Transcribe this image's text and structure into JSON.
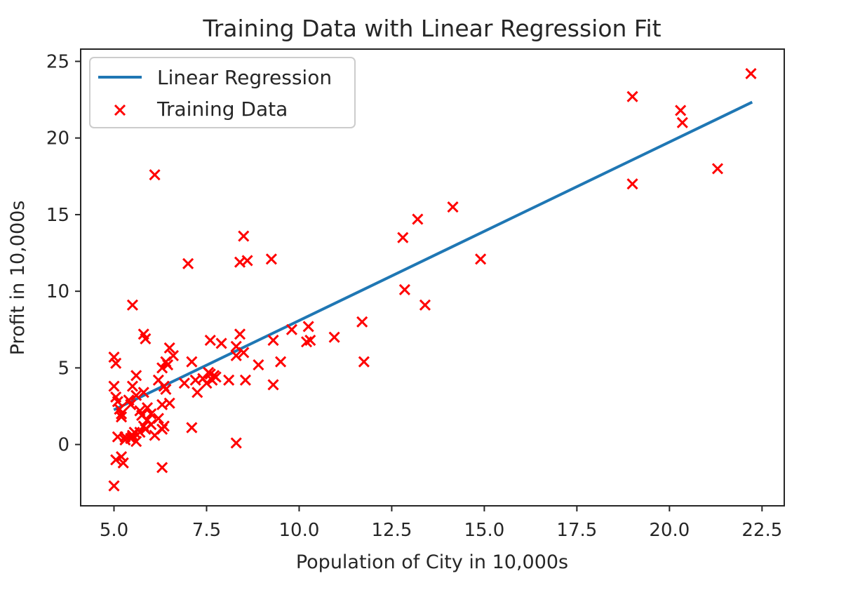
{
  "chart_data": {
    "type": "scatter",
    "title": "Training Data with Linear Regression Fit",
    "xlabel": "Population of City in 10,000s",
    "ylabel": "Profit in 10,000s",
    "xlim": [
      4.1,
      23.1
    ],
    "ylim": [
      -4.0,
      25.8
    ],
    "xticks": [
      5.0,
      7.5,
      10.0,
      12.5,
      15.0,
      17.5,
      20.0,
      22.5
    ],
    "xtick_labels": [
      "5.0",
      "7.5",
      "10.0",
      "12.5",
      "15.0",
      "17.5",
      "20.0",
      "22.5"
    ],
    "yticks": [
      0,
      5,
      10,
      15,
      20,
      25
    ],
    "ytick_labels": [
      "0",
      "5",
      "10",
      "15",
      "20",
      "25"
    ],
    "grid": false,
    "legend_position": "top-left",
    "colors": {
      "line": "#1f77b4",
      "points": "#ff0000",
      "axes": "#262626"
    },
    "series": [
      {
        "name": "Linear Regression",
        "kind": "line",
        "x": [
          5.03,
          22.2
        ],
        "y": [
          2.3,
          22.3
        ]
      },
      {
        "name": "Training Data",
        "kind": "scatter",
        "marker": "x",
        "x": [
          22.2,
          19.0,
          20.3,
          20.35,
          21.3,
          19.0,
          6.1,
          14.15,
          13.2,
          12.8,
          14.9,
          12.85,
          13.4,
          11.7,
          11.75,
          10.95,
          10.25,
          10.3,
          10.2,
          9.8,
          9.5,
          9.3,
          9.25,
          9.3,
          8.5,
          8.4,
          8.6,
          8.55,
          8.4,
          8.3,
          8.5,
          8.3,
          8.1,
          8.9,
          7.9,
          7.6,
          7.75,
          7.0,
          7.1,
          7.2,
          7.25,
          7.5,
          7.4,
          7.6,
          7.65,
          7.55,
          7.7,
          6.9,
          6.5,
          6.4,
          6.45,
          6.3,
          6.6,
          6.2,
          6.35,
          6.4,
          6.3,
          6.5,
          6.35,
          5.5,
          5.8,
          5.85,
          5.8,
          5.6,
          5.5,
          5.6,
          5.4,
          5.45,
          5.7,
          5.75,
          5.9,
          5.8,
          5.85,
          5.7,
          6.0,
          6.2,
          6.3,
          6.1,
          6.0,
          5.9,
          5.5,
          5.6,
          5.55,
          5.5,
          5.45,
          5.3,
          5.2,
          5.25,
          5.3,
          5.2,
          5.1,
          5.05,
          5.0,
          5.05,
          5.0,
          5.1,
          5.05,
          5.2,
          5.15,
          5.0,
          7.1,
          6.3,
          8.3
        ],
        "y": [
          24.2,
          22.7,
          21.8,
          21.0,
          18.0,
          17.0,
          17.6,
          15.5,
          14.7,
          13.5,
          12.1,
          10.1,
          9.1,
          8.0,
          5.4,
          7.0,
          7.7,
          6.8,
          6.7,
          7.5,
          5.4,
          6.8,
          12.1,
          3.9,
          13.6,
          11.9,
          12.0,
          4.2,
          7.2,
          6.4,
          6.0,
          5.8,
          4.2,
          5.2,
          6.6,
          6.8,
          4.4,
          11.8,
          5.4,
          4.2,
          3.4,
          4.0,
          4.3,
          4.6,
          4.2,
          4.7,
          4.5,
          4.0,
          6.3,
          5.4,
          5.2,
          5.0,
          5.8,
          4.2,
          3.8,
          3.6,
          2.6,
          2.7,
          1.2,
          9.1,
          7.2,
          6.9,
          3.4,
          4.5,
          3.8,
          3.2,
          2.9,
          2.6,
          2.2,
          1.9,
          1.6,
          1.2,
          1.0,
          0.8,
          1.3,
          1.7,
          1.0,
          0.6,
          2.0,
          2.4,
          0.5,
          0.2,
          0.8,
          0.6,
          0.4,
          0.3,
          -0.8,
          -1.2,
          0.5,
          2.0,
          2.8,
          3.1,
          3.8,
          5.3,
          5.7,
          0.5,
          -1.0,
          1.8,
          2.3,
          -2.7,
          1.1,
          -1.5,
          0.1
        ]
      }
    ]
  }
}
